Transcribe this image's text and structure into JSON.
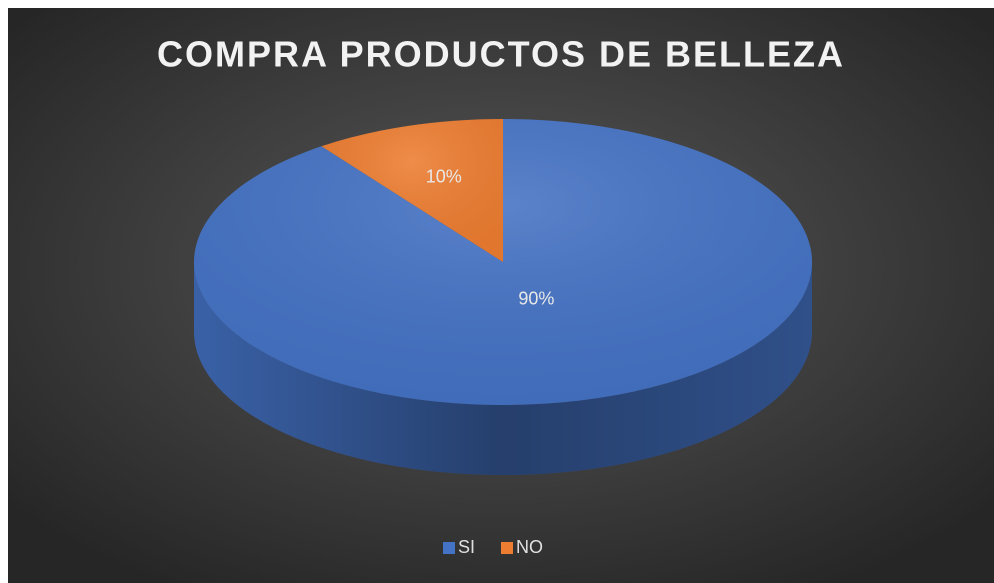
{
  "chart_data": {
    "type": "pie",
    "title": "COMPRA PRODUCTOS DE BELLEZA",
    "categories": [
      "SI",
      "NO"
    ],
    "values": [
      90,
      10
    ],
    "value_labels": [
      "90%",
      "10%"
    ],
    "colors": [
      "#4472c4",
      "#ed7d31"
    ],
    "legend": "bottom"
  }
}
